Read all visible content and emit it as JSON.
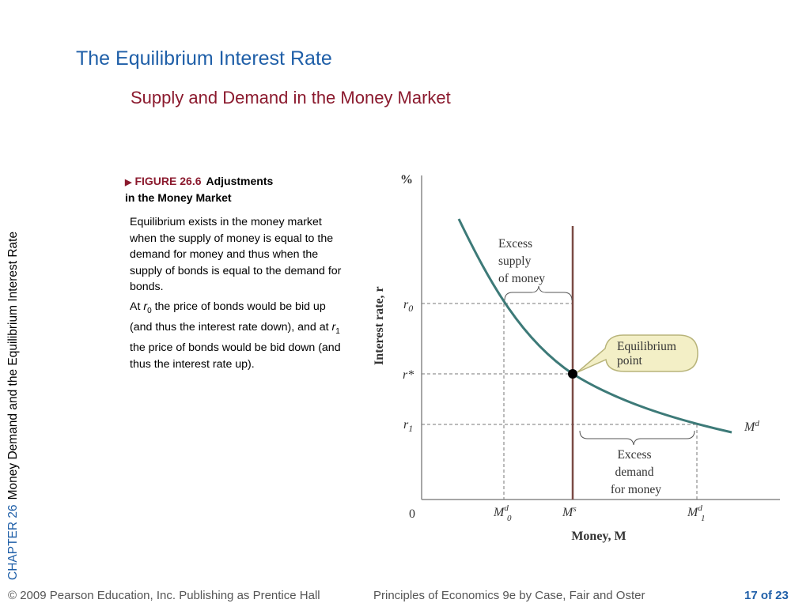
{
  "slide": {
    "title": "The Equilibrium Interest Rate",
    "subtitle": "Supply and Demand in the Money Market",
    "side_chapter": "CHAPTER 26",
    "side_topic": "Money Demand and the Equilibrium Interest Rate"
  },
  "figure": {
    "number": "FIGURE 26.6",
    "caption_line1": "Adjustments",
    "caption_line2": "in the Money Market",
    "text_p1": "Equilibrium exists in the money market when the supply of money is equal to the demand for money and thus when the supply of bonds is equal to the demand for bonds.",
    "text_p2_a": "At ",
    "text_p2_r0_base": "r",
    "text_p2_r0_sub": "0",
    "text_p2_b": " the price of bonds would be bid up (and thus the interest rate down), and at ",
    "text_p2_r1_base": "r",
    "text_p2_r1_sub": "1",
    "text_p2_c": " the price of bonds would be bid down (and thus the interest rate up)."
  },
  "diagram": {
    "y_unit": "%",
    "y_axis_label": "Interest rate, r",
    "x_axis_label": "Money, M",
    "origin_label": "0",
    "r0_base": "r",
    "r0_sub": "0",
    "rstar_label": "r*",
    "r1_base": "r",
    "r1_sub": "1",
    "md0_base": "M",
    "md0_sup": "d",
    "md0_sub": "0",
    "ms_base": "M",
    "ms_sup": "s",
    "md1_base": "M",
    "md1_sup": "d",
    "md1_sub": "1",
    "demand_curve_base": "M",
    "demand_curve_sup": "d",
    "excess_supply_line1": "Excess",
    "excess_supply_line2": "supply",
    "excess_supply_line3": "of money",
    "excess_demand_line1": "Excess",
    "excess_demand_line2": "demand",
    "excess_demand_line3": "for money",
    "equilibrium_line1": "Equilibrium",
    "equilibrium_line2": "point",
    "colors": {
      "demand_curve": "#3d7a78",
      "supply_line": "#7a4a44",
      "callout_fill": "#f3efc6",
      "callout_stroke": "#b8b47a"
    }
  },
  "footer": {
    "copyright": "© 2009 Pearson Education, Inc. Publishing as Prentice Hall",
    "book": "Principles of Economics 9e by Case, Fair and Oster",
    "page": "17 of 23"
  }
}
